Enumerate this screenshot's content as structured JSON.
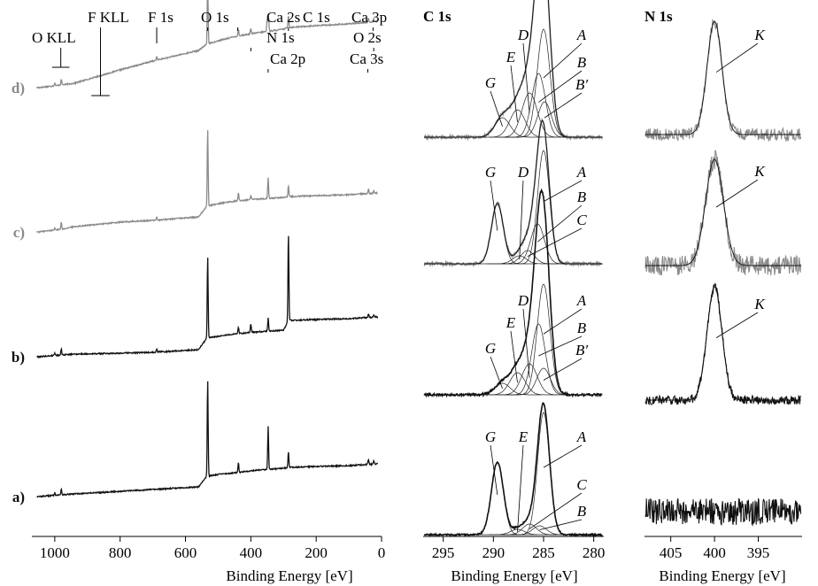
{
  "colors": {
    "gray": "#8a8a8a",
    "black": "#111111",
    "fit": "#222222"
  },
  "chart_data": [
    {
      "type": "line",
      "panel": "survey",
      "xlabel": "Binding Energy [eV]",
      "xlim": [
        1070,
        0
      ],
      "x_reversed": true,
      "xticks": [
        "1000",
        "800",
        "600",
        "400",
        "200",
        "0"
      ],
      "xtick_values": [
        1000,
        800,
        600,
        400,
        200,
        0
      ],
      "grid": false,
      "series": [
        {
          "name": "d)",
          "color": "gray",
          "sample_label": "d)",
          "background": [
            [
              1050,
              0
            ],
            [
              980,
              3
            ],
            [
              940,
              5
            ],
            [
              800,
              20
            ],
            [
              700,
              30
            ],
            [
              560,
              42
            ],
            [
              535,
              49
            ],
            [
              500,
              53
            ],
            [
              445,
              58
            ],
            [
              380,
              62
            ],
            [
              300,
              66
            ],
            [
              285,
              68
            ],
            [
              200,
              70
            ],
            [
              100,
              72
            ],
            [
              10,
              75
            ]
          ],
          "peaks": [
            [
              1000,
              3
            ],
            [
              980,
              7
            ],
            [
              688,
              4
            ],
            [
              532,
              68
            ],
            [
              438,
              7
            ],
            [
              400,
              6
            ],
            [
              350,
              14
            ],
            [
              346,
              17
            ],
            [
              285,
              14
            ],
            [
              40,
              4
            ],
            [
              24,
              3
            ]
          ]
        },
        {
          "name": "c)",
          "color": "gray",
          "sample_label": "c)",
          "background": [
            [
              1050,
              0
            ],
            [
              980,
              3
            ],
            [
              940,
              6
            ],
            [
              800,
              11
            ],
            [
              700,
              13
            ],
            [
              560,
              17
            ],
            [
              535,
              29
            ],
            [
              500,
              32
            ],
            [
              445,
              35
            ],
            [
              380,
              37
            ],
            [
              300,
              39
            ],
            [
              285,
              40
            ],
            [
              200,
              41
            ],
            [
              100,
              42
            ],
            [
              10,
              44
            ]
          ],
          "peaks": [
            [
              1000,
              3
            ],
            [
              980,
              8
            ],
            [
              688,
              3
            ],
            [
              532,
              86
            ],
            [
              438,
              9
            ],
            [
              400,
              5
            ],
            [
              347,
              24
            ],
            [
              285,
              12
            ],
            [
              40,
              5
            ],
            [
              24,
              3
            ]
          ]
        },
        {
          "name": "b)",
          "color": "black",
          "sample_label": "b)",
          "background": [
            [
              1050,
              0
            ],
            [
              980,
              2
            ],
            [
              940,
              3
            ],
            [
              800,
              4
            ],
            [
              700,
              5
            ],
            [
              560,
              8
            ],
            [
              535,
              21
            ],
            [
              500,
              23
            ],
            [
              445,
              26
            ],
            [
              380,
              28
            ],
            [
              300,
              30
            ],
            [
              285,
              41
            ],
            [
              200,
              42
            ],
            [
              100,
              43
            ],
            [
              10,
              45
            ]
          ],
          "peaks": [
            [
              1000,
              3
            ],
            [
              980,
              7
            ],
            [
              688,
              4
            ],
            [
              532,
              92
            ],
            [
              438,
              7
            ],
            [
              400,
              10
            ],
            [
              347,
              15
            ],
            [
              285,
              99
            ],
            [
              40,
              4
            ],
            [
              24,
              3
            ]
          ]
        },
        {
          "name": "a)",
          "color": "black",
          "sample_label": "a)",
          "background": [
            [
              1050,
              0
            ],
            [
              980,
              2
            ],
            [
              940,
              3
            ],
            [
              800,
              6
            ],
            [
              700,
              8
            ],
            [
              560,
              11
            ],
            [
              535,
              23
            ],
            [
              500,
              25
            ],
            [
              445,
              27
            ],
            [
              380,
              30
            ],
            [
              300,
              32
            ],
            [
              285,
              33
            ],
            [
              200,
              34
            ],
            [
              100,
              35
            ],
            [
              10,
              37
            ]
          ],
          "peaks": [
            [
              1000,
              3
            ],
            [
              980,
              7
            ],
            [
              532,
              108
            ],
            [
              438,
              11
            ],
            [
              347,
              49
            ],
            [
              285,
              18
            ],
            [
              40,
              6
            ],
            [
              24,
              4
            ]
          ]
        }
      ],
      "annotations": [
        {
          "text": "O KLL",
          "x": 985,
          "bracket": [
            1008,
            955
          ],
          "y_offset": 18
        },
        {
          "text": "F KLL",
          "x": 860,
          "bracket": [
            888,
            832
          ],
          "y_offset": 4
        },
        {
          "text": "F 1s",
          "x": 688,
          "y_offset": 15
        },
        {
          "text": "O 1s",
          "x": 532,
          "y_offset": 10
        },
        {
          "text": "Ca 2s",
          "x": 440,
          "y_offset": 8
        },
        {
          "text": "N 1s",
          "x": 400,
          "y_offset": 10
        },
        {
          "text": "Ca 2p",
          "x": 347,
          "y_offset": 6
        },
        {
          "text": "C 1s",
          "x": 285,
          "y_offset": 5
        },
        {
          "text": "Ca 3p",
          "x": 26,
          "y_offset": 10
        },
        {
          "text": "O 2s",
          "x": 24,
          "y_offset": 8
        },
        {
          "text": "Ca 3s",
          "x": 42,
          "y_offset": 8
        }
      ]
    },
    {
      "type": "line",
      "panel": "C 1s",
      "title": "C 1s",
      "xlabel": "Binding Energy [eV]",
      "xlim": [
        297,
        279
      ],
      "x_reversed": true,
      "xticks": [
        "295",
        "290",
        "285",
        "280"
      ],
      "xtick_values": [
        295,
        290,
        285,
        280
      ],
      "grid": false,
      "series": [
        {
          "name": "d)",
          "color": "gray",
          "noise": 1.5,
          "components": [
            {
              "label": "A",
              "center": 285.0,
              "height": 122,
              "fwhm": 1.5
            },
            {
              "label": "B",
              "center": 285.5,
              "height": 72,
              "fwhm": 1.6
            },
            {
              "label": "B′",
              "center": 284.9,
              "height": 40,
              "fwhm": 1.6
            },
            {
              "label": "D",
              "center": 286.4,
              "height": 50,
              "fwhm": 1.8
            },
            {
              "label": "E",
              "center": 287.6,
              "height": 31,
              "fwhm": 1.8
            },
            {
              "label": "G",
              "center": 289.1,
              "height": 22,
              "fwhm": 1.8
            }
          ]
        },
        {
          "name": "c)",
          "color": "gray",
          "noise": 1.5,
          "components": [
            {
              "label": "A",
              "center": 285.0,
              "height": 128,
              "fwhm": 1.4
            },
            {
              "label": "B",
              "center": 285.6,
              "height": 45,
              "fwhm": 1.6
            },
            {
              "label": "C",
              "center": 286.6,
              "height": 15,
              "fwhm": 1.6
            },
            {
              "label": "D",
              "center": 287.4,
              "height": 9,
              "fwhm": 1.6
            },
            {
              "label": "G",
              "center": 289.6,
              "height": 68,
              "fwhm": 1.4
            }
          ]
        },
        {
          "name": "b)",
          "color": "black",
          "noise": 1.2,
          "components": [
            {
              "label": "A",
              "center": 285.0,
              "height": 125,
              "fwhm": 1.5
            },
            {
              "label": "B",
              "center": 285.5,
              "height": 80,
              "fwhm": 1.6
            },
            {
              "label": "B′",
              "center": 285.0,
              "height": 30,
              "fwhm": 1.6
            },
            {
              "label": "D",
              "center": 286.4,
              "height": 35,
              "fwhm": 1.8
            },
            {
              "label": "E",
              "center": 287.6,
              "height": 25,
              "fwhm": 1.8
            },
            {
              "label": "G",
              "center": 289.1,
              "height": 13,
              "fwhm": 1.8
            }
          ]
        },
        {
          "name": "a)",
          "color": "black",
          "noise": 0.8,
          "components": [
            {
              "label": "A",
              "center": 285.0,
              "height": 138,
              "fwhm": 1.4
            },
            {
              "label": "B",
              "center": 285.4,
              "height": 10,
              "fwhm": 1.6
            },
            {
              "label": "C",
              "center": 286.4,
              "height": 12,
              "fwhm": 1.6
            },
            {
              "label": "E",
              "center": 287.6,
              "height": 6,
              "fwhm": 1.6
            },
            {
              "label": "G",
              "center": 289.6,
              "height": 82,
              "fwhm": 1.4
            }
          ]
        }
      ]
    },
    {
      "type": "line",
      "panel": "N 1s",
      "title": "N 1s",
      "xlabel": "Binding Energy [eV]",
      "xlim": [
        408,
        390
      ],
      "x_reversed": true,
      "xticks": [
        "405",
        "400",
        "395"
      ],
      "xtick_values": [
        405,
        400,
        395
      ],
      "grid": false,
      "series": [
        {
          "name": "d)",
          "color": "gray",
          "noise": 14,
          "component_label": "K",
          "center": 400.0,
          "height": 128,
          "fwhm": 2.0
        },
        {
          "name": "c)",
          "color": "gray",
          "noise": 22,
          "component_label": "K",
          "center": 400.0,
          "height": 120,
          "fwhm": 2.4
        },
        {
          "name": "b)",
          "color": "black",
          "noise": 10,
          "component_label": "K",
          "center": 400.0,
          "height": 128,
          "fwhm": 2.0
        },
        {
          "name": "a)",
          "color": "black",
          "noise": 30,
          "component_label": "",
          "center": 400.0,
          "height": 0,
          "fwhm": 2.0
        }
      ]
    }
  ]
}
